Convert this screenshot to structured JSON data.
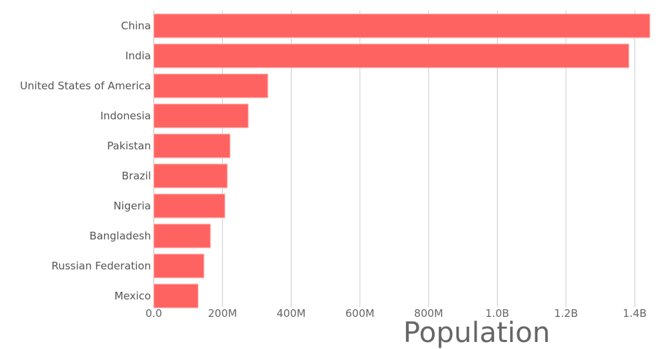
{
  "chart_data": {
    "type": "bar",
    "orientation": "horizontal",
    "title": "",
    "xlabel": "Population",
    "ylabel": "",
    "categories": [
      "China",
      "India",
      "United States of America",
      "Indonesia",
      "Pakistan",
      "Brazil",
      "Nigeria",
      "Bangladesh",
      "Russian Federation",
      "Mexico"
    ],
    "values": [
      1444000000,
      1383000000,
      332000000,
      275000000,
      222000000,
      214000000,
      207000000,
      165000000,
      146000000,
      129000000
    ],
    "xlim": [
      0,
      1440000000
    ],
    "xticks": [
      0,
      200000000,
      400000000,
      600000000,
      800000000,
      1000000000,
      1200000000,
      1400000000
    ],
    "xtick_labels": [
      "0.0",
      "200M",
      "400M",
      "600M",
      "800M",
      "1.0B",
      "1.2B",
      "1.4B"
    ],
    "grid": true,
    "bar_color": "#ff6361"
  }
}
